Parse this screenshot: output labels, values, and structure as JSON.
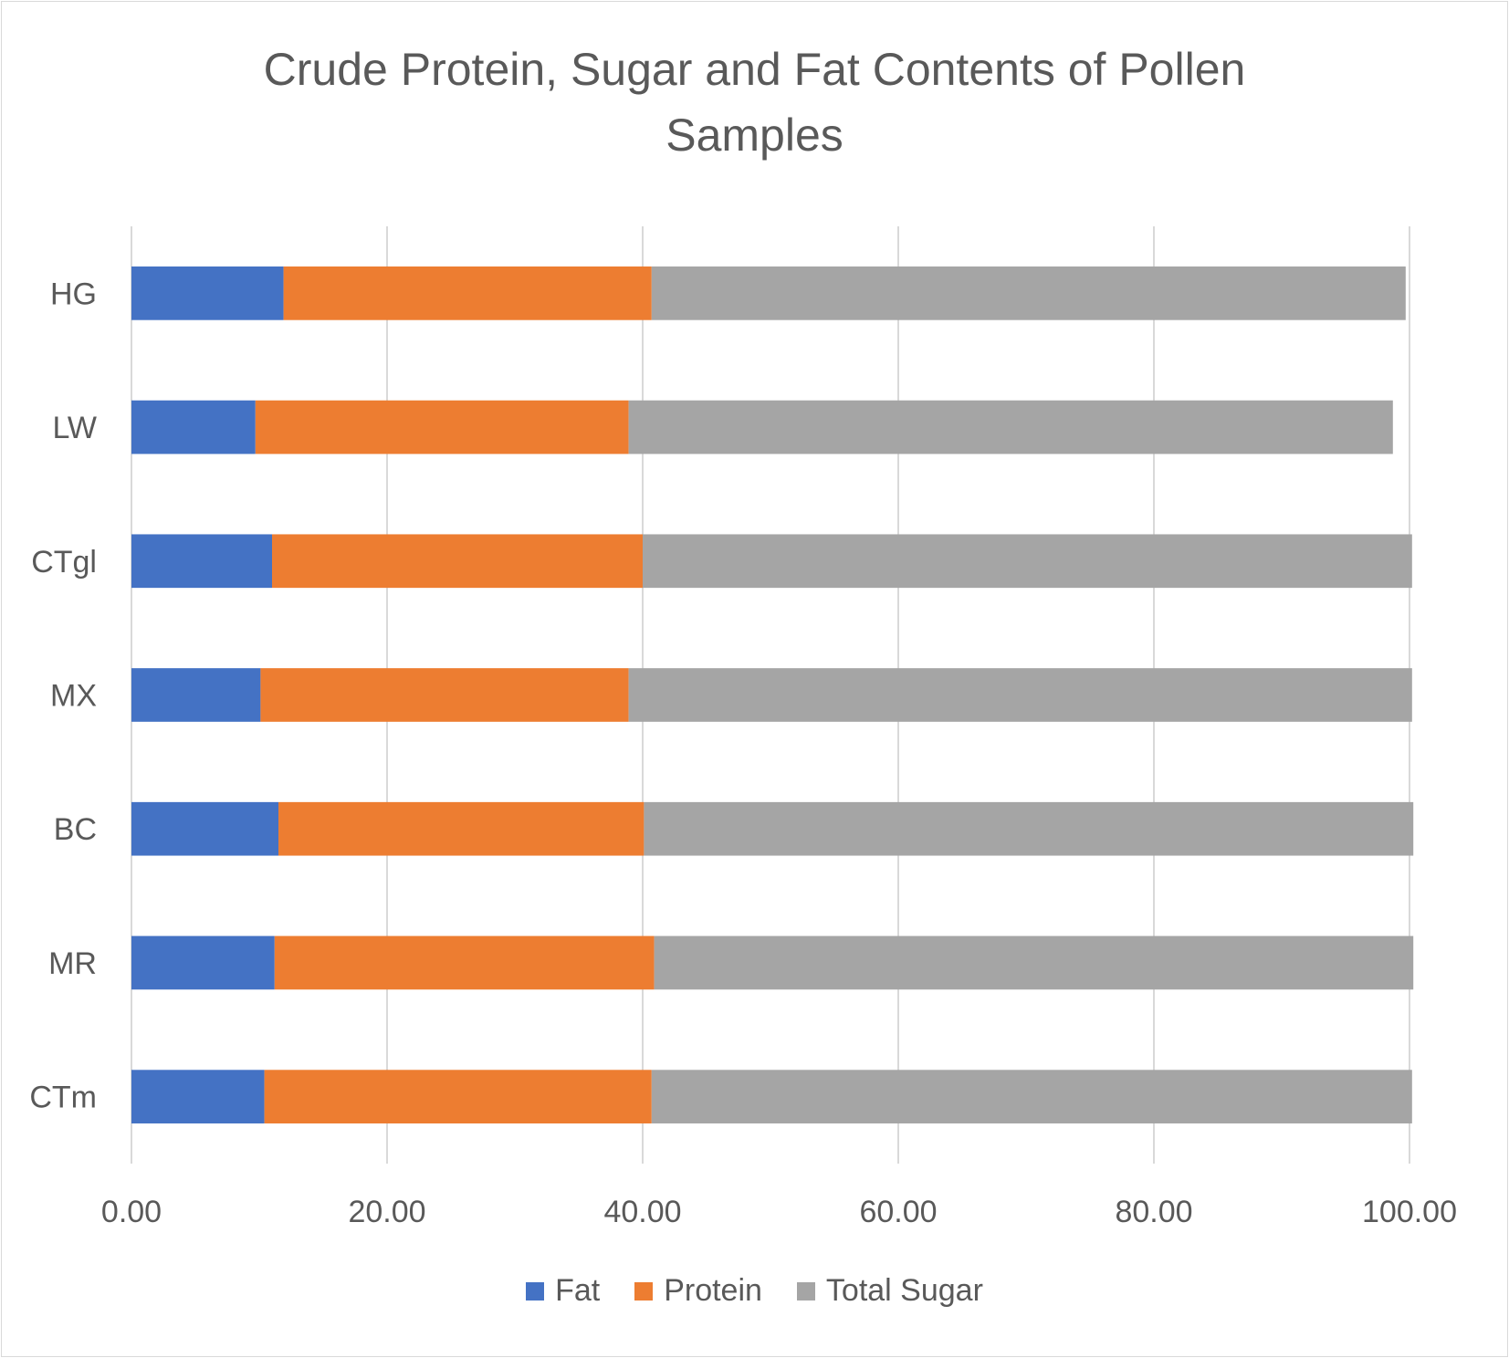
{
  "chart_data": {
    "type": "bar",
    "orientation": "horizontal",
    "stacked": true,
    "title": "Crude Protein, Sugar and Fat Contents of Pollen\nSamples",
    "categories": [
      "CTm",
      "MR",
      "BC",
      "MX",
      "CTgl",
      "LW",
      "HG"
    ],
    "series": [
      {
        "name": "Fat",
        "color": "#4472c4",
        "values": [
          10.4,
          11.2,
          11.5,
          10.1,
          11.0,
          9.7,
          11.9
        ]
      },
      {
        "name": "Protein",
        "color": "#ed7d31",
        "values": [
          30.3,
          29.7,
          28.6,
          28.8,
          29.0,
          29.2,
          28.8
        ]
      },
      {
        "name": "Total Sugar",
        "color": "#a5a5a5",
        "values": [
          59.5,
          59.4,
          60.2,
          61.3,
          60.2,
          59.8,
          59.0
        ]
      }
    ],
    "x_ticks": [
      "0.00",
      "20.00",
      "40.00",
      "60.00",
      "80.00",
      "100.00"
    ],
    "xlim": [
      0,
      100
    ],
    "grid": "vertical",
    "legend": "bottom"
  }
}
